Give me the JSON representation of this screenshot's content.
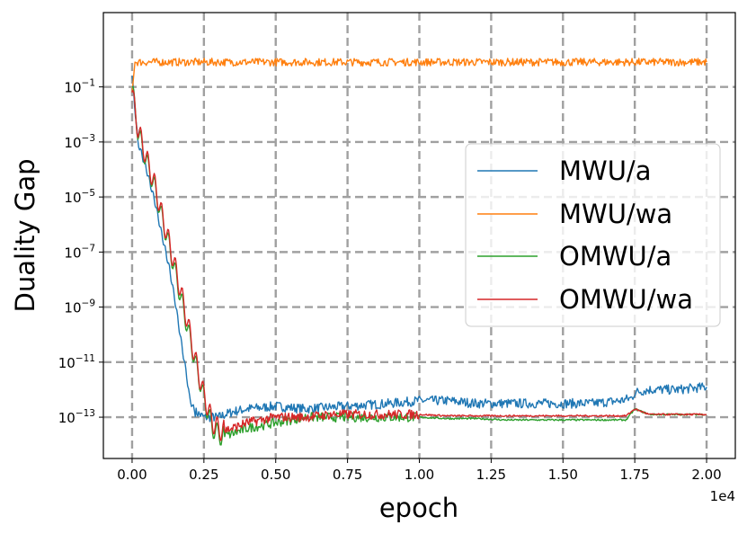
{
  "chart_data": {
    "type": "line",
    "title": "",
    "xlabel": "epoch",
    "ylabel": "Duality Gap",
    "x_offset_label": "1e4",
    "xscale": "linear",
    "yscale": "log",
    "xlim": [
      -0.1,
      2.1
    ],
    "ylim_exponent": [
      -14.5,
      1.7
    ],
    "xticks": [
      0.0,
      0.25,
      0.5,
      0.75,
      1.0,
      1.25,
      1.5,
      1.75,
      2.0
    ],
    "xtick_labels": [
      "0.00",
      "0.25",
      "0.50",
      "0.75",
      "1.00",
      "1.25",
      "1.50",
      "1.75",
      "2.00"
    ],
    "ytick_exponents": [
      -1,
      -3,
      -5,
      -7,
      -9,
      -11,
      -13
    ],
    "ytick_base": "10",
    "ytick_signs": [
      "−",
      "−",
      "−",
      "−",
      "−",
      "−",
      "−"
    ],
    "ytick_powers": [
      "1",
      "3",
      "5",
      "7",
      "9",
      "11",
      "13"
    ],
    "grid": true,
    "legend_position": "center-right",
    "series": [
      {
        "name": "MWU/a",
        "color": "#1f77b4",
        "x": [
          0.0,
          0.02,
          0.05,
          0.08,
          0.1,
          0.13,
          0.15,
          0.17,
          0.19,
          0.2,
          0.21,
          0.22,
          0.25,
          0.3,
          0.35,
          0.4,
          0.5,
          0.6,
          0.75,
          0.9,
          1.0,
          1.1,
          1.2,
          1.3,
          1.4,
          1.5,
          1.6,
          1.7,
          1.74,
          1.75,
          1.8,
          1.9,
          2.0
        ],
        "y_log10": [
          -0.6,
          -3.0,
          -4.0,
          -5.2,
          -6.2,
          -7.6,
          -8.8,
          -10.2,
          -11.5,
          -12.3,
          -12.6,
          -12.8,
          -13.0,
          -13.0,
          -12.8,
          -12.7,
          -12.6,
          -12.7,
          -12.6,
          -12.5,
          -12.4,
          -12.4,
          -12.5,
          -12.5,
          -12.5,
          -12.5,
          -12.5,
          -12.4,
          -12.3,
          -12.1,
          -12.0,
          -12.0,
          -11.9
        ]
      },
      {
        "name": "MWU/wa",
        "color": "#ff7f0e",
        "x": [
          0.0,
          0.01,
          0.2,
          0.4,
          0.6,
          0.8,
          1.0,
          1.2,
          1.4,
          1.6,
          1.8,
          2.0
        ],
        "y_log10": [
          -1.2,
          -0.1,
          -0.1,
          -0.1,
          -0.1,
          -0.1,
          -0.1,
          -0.1,
          -0.1,
          -0.1,
          -0.1,
          -0.1
        ]
      },
      {
        "name": "OMWU/a",
        "color": "#2ca02c",
        "x": [
          0.0,
          0.02,
          0.05,
          0.08,
          0.1,
          0.13,
          0.16,
          0.19,
          0.22,
          0.25,
          0.28,
          0.31,
          0.35,
          0.4,
          0.5,
          0.6,
          0.7,
          0.8,
          0.9,
          1.0,
          1.1,
          1.2,
          1.3,
          1.5,
          1.7,
          1.72,
          1.75,
          1.8,
          2.0
        ],
        "y_log10": [
          -1.0,
          -2.6,
          -3.7,
          -4.7,
          -5.6,
          -6.8,
          -8.2,
          -9.6,
          -11.0,
          -12.3,
          -13.4,
          -13.7,
          -13.6,
          -13.4,
          -13.2,
          -13.0,
          -13.0,
          -13.0,
          -13.0,
          -13.0,
          -13.05,
          -13.05,
          -13.1,
          -13.1,
          -13.1,
          -13.1,
          -12.7,
          -12.9,
          -12.9
        ]
      },
      {
        "name": "OMWU/wa",
        "color": "#d62728",
        "x": [
          0.0,
          0.02,
          0.05,
          0.08,
          0.1,
          0.13,
          0.16,
          0.19,
          0.22,
          0.25,
          0.28,
          0.31,
          0.35,
          0.4,
          0.5,
          0.6,
          0.7,
          0.8,
          0.9,
          1.0,
          1.1,
          1.2,
          1.3,
          1.5,
          1.7,
          1.72,
          1.75,
          1.8,
          2.0
        ],
        "y_log10": [
          -1.2,
          -2.5,
          -3.6,
          -4.6,
          -5.5,
          -6.7,
          -8.0,
          -9.4,
          -10.9,
          -12.2,
          -13.2,
          -13.5,
          -13.4,
          -13.2,
          -13.0,
          -13.0,
          -12.9,
          -12.9,
          -12.9,
          -12.9,
          -12.95,
          -12.95,
          -12.95,
          -12.95,
          -12.95,
          -12.95,
          -12.7,
          -12.9,
          -12.9
        ]
      }
    ]
  }
}
